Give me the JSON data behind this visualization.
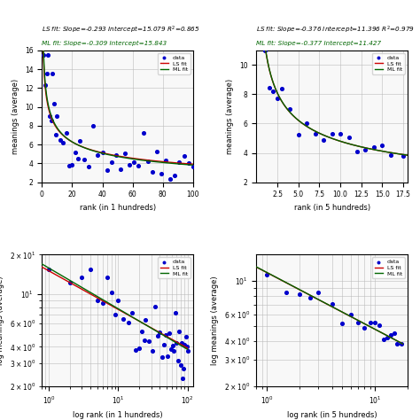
{
  "panel1": {
    "title_ls": "LS fit: Slope=-0.293 Intercept=15.079 $R^2$=0.865",
    "title_ml": "ML fit: Slope=-0.309 Intercept=15.843",
    "ls_slope": -0.293,
    "ls_intercept": 15.079,
    "ml_slope": -0.309,
    "ml_intercept": 15.843,
    "xlabel": "rank (in 1 hundreds)",
    "ylabel": "meanings (average)",
    "xlim": [
      0,
      100
    ],
    "ylim": [
      2,
      16
    ]
  },
  "panel2": {
    "title_ls": "LS fit: Slope=-0.376 Intercept=11.396 $R^2$=0.979",
    "title_ml": "ML fit: Slope=-0.377 Intercept=11.427",
    "ls_slope": -0.376,
    "ls_intercept": 11.396,
    "ml_slope": -0.377,
    "ml_intercept": 11.427,
    "xlabel": "rank (in 5 hundreds)",
    "ylabel": "meanings (average)",
    "xlim": [
      0,
      18
    ],
    "ylim": [
      2,
      11
    ]
  },
  "panel3": {
    "xlabel": "log rank (in 1 hundreds)",
    "ylabel": "log meanings (average)",
    "ls_slope": -0.293,
    "ls_intercept": 15.079,
    "ml_slope": -0.309,
    "ml_intercept": 15.843
  },
  "panel4": {
    "xlabel": "log rank (in 5 hundreds)",
    "ylabel": "log meanings (average)",
    "ls_slope": -0.376,
    "ls_intercept": 11.396,
    "ml_slope": -0.377,
    "ml_intercept": 11.427
  },
  "data_color": "#0000CC",
  "ls_color": "#CC0000",
  "ml_color": "#006600",
  "grid_color": "#BBBBBB",
  "bg_color": "#F8F8F8",
  "title_ls_color": "#000000",
  "title_ml_color": "#006600"
}
